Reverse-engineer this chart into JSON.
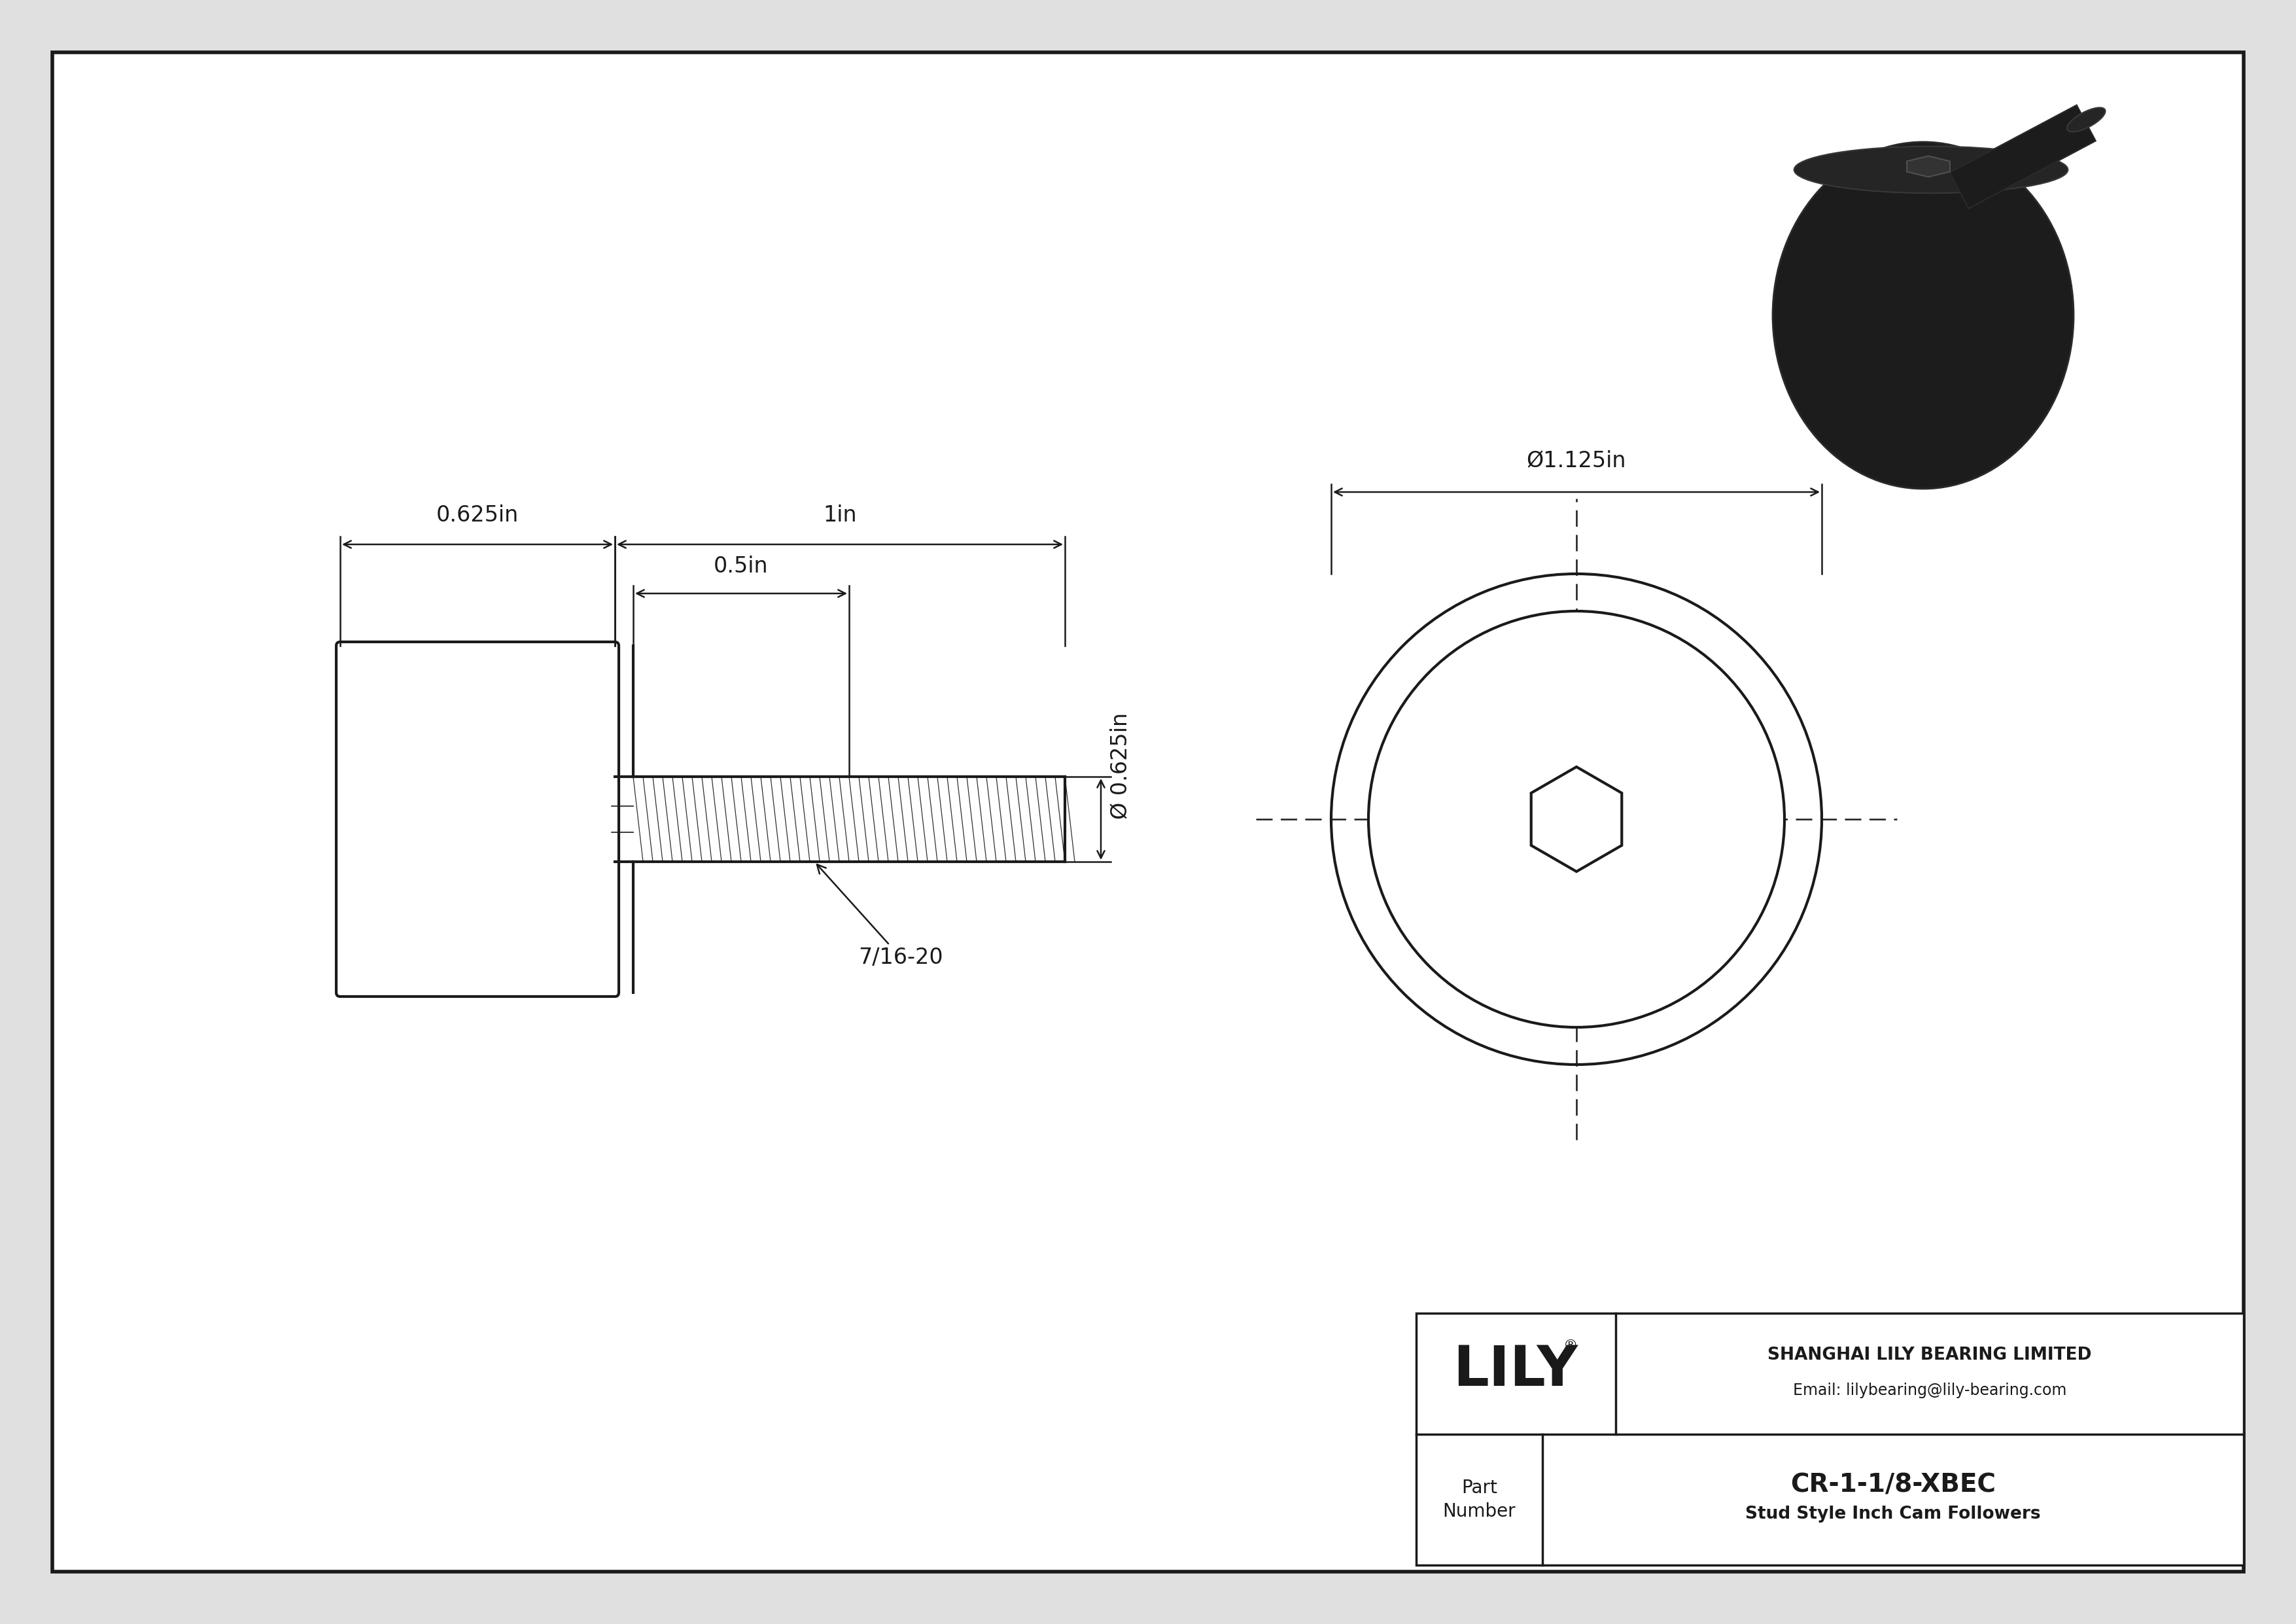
{
  "bg_color": "#e0e0e0",
  "drawing_bg": "#ffffff",
  "line_color": "#1a1a1a",
  "title": "CR-1-1/8-XBEC",
  "subtitle": "Stud Style Inch Cam Followers",
  "company": "SHANGHAI LILY BEARING LIMITED",
  "email": "Email: lilybearing@lily-bearing.com",
  "part_label_1": "Part",
  "part_label_2": "Number",
  "lily_text": "LILY",
  "dim_625": "0.625in",
  "dim_1in": "1in",
  "dim_05in": "0.5in",
  "dim_0625_vert": "Ø 0.625in",
  "dim_1125": "Ø1.125in",
  "thread_label": "7/16-20",
  "lw_border": 4.0,
  "lw_part": 3.0,
  "lw_dim": 1.8,
  "lw_thread": 0.9,
  "font_size_dim": 24,
  "font_size_label": 20,
  "font_size_lily": 62,
  "font_size_part_num": 28,
  "font_size_company": 19,
  "font_size_email": 17
}
